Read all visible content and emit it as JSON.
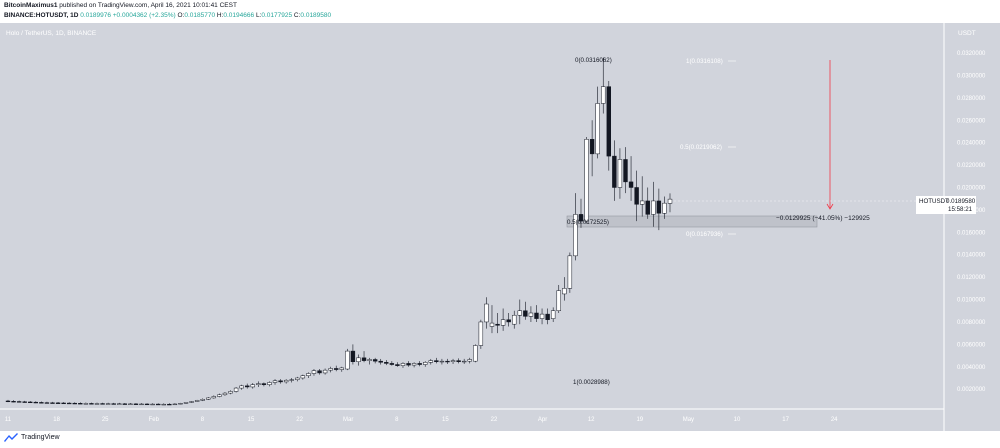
{
  "header": {
    "author": "BitcoinMaximus1",
    "published_text": "published on TradingView.com, April 16, 2021 10:01:41 CEST",
    "symbol": "BINANCE:HOTUSDT, 1D",
    "last": "0.0189976",
    "change": "+0.0004362 (+2.35%)",
    "o_label": "O:",
    "o": "0.0185770",
    "h_label": "H:",
    "h": "0.0194666",
    "l_label": "L:",
    "l": "0.0177925",
    "c_label": "C:",
    "c": "0.0189580"
  },
  "chart_title": "Holo / TetherUS, 1D, BINANCE",
  "currency": "USDT",
  "price_tag": {
    "label": "HOTUSDT",
    "value": "0.0189580",
    "countdown": "15:58:21"
  },
  "fib": {
    "zero_top": "0(0.0316062)",
    "one_top": "1(0.0316108)",
    "half": "0.5(0.0219062)",
    "zero_bottom": "0(0.0167936)",
    "box_left": "0.5(0.0172525)",
    "one_bottom": "1(0.0028988)"
  },
  "measure": {
    "text": "−0.0129925 (−41.05%) −129925"
  },
  "footer": {
    "brand": "TradingView"
  },
  "colors": {
    "background": "#d1d4dc",
    "arrow": "#f23645",
    "box": "#b2b5be",
    "candle": "#131722"
  },
  "chart_data": {
    "type": "candlestick",
    "y_axis_ticks": [
      "0.0320000",
      "0.0300000",
      "0.0280000",
      "0.0260000",
      "0.0240000",
      "0.0220000",
      "0.0200000",
      "0.0180000",
      "0.0160000",
      "0.0140000",
      "0.0120000",
      "0.0100000",
      "0.0080000",
      "0.0060000",
      "0.0040000",
      "0.0020000"
    ],
    "y_range": [
      0.0005,
      0.0345
    ],
    "x_axis_ticks": [
      "11",
      "18",
      "25",
      "Feb",
      "8",
      "15",
      "22",
      "Mar",
      "8",
      "15",
      "22",
      "Apr",
      "12",
      "19",
      "May",
      "10",
      "17",
      "24"
    ],
    "candles": [
      {
        "o": 0.00095,
        "h": 0.00105,
        "l": 0.00085,
        "c": 0.00092
      },
      {
        "o": 0.00092,
        "h": 0.00102,
        "l": 0.00082,
        "c": 0.0009
      },
      {
        "o": 0.0009,
        "h": 0.00098,
        "l": 0.00082,
        "c": 0.00088
      },
      {
        "o": 0.00088,
        "h": 0.00096,
        "l": 0.0008,
        "c": 0.00086
      },
      {
        "o": 0.00086,
        "h": 0.00094,
        "l": 0.00078,
        "c": 0.00084
      },
      {
        "o": 0.00084,
        "h": 0.00092,
        "l": 0.00076,
        "c": 0.00082
      },
      {
        "o": 0.00082,
        "h": 0.0009,
        "l": 0.00075,
        "c": 0.0008
      },
      {
        "o": 0.0008,
        "h": 0.00088,
        "l": 0.00074,
        "c": 0.00079
      },
      {
        "o": 0.00079,
        "h": 0.00087,
        "l": 0.00073,
        "c": 0.00078
      },
      {
        "o": 0.00078,
        "h": 0.00086,
        "l": 0.00072,
        "c": 0.00077
      },
      {
        "o": 0.00077,
        "h": 0.00085,
        "l": 0.00071,
        "c": 0.00076
      },
      {
        "o": 0.00076,
        "h": 0.00084,
        "l": 0.0007,
        "c": 0.00075
      },
      {
        "o": 0.00075,
        "h": 0.00083,
        "l": 0.00069,
        "c": 0.00074
      },
      {
        "o": 0.00074,
        "h": 0.00082,
        "l": 0.00068,
        "c": 0.00073
      },
      {
        "o": 0.00073,
        "h": 0.00081,
        "l": 0.00068,
        "c": 0.00073
      },
      {
        "o": 0.00073,
        "h": 0.0008,
        "l": 0.00067,
        "c": 0.00072
      },
      {
        "o": 0.00072,
        "h": 0.0008,
        "l": 0.00067,
        "c": 0.00072
      },
      {
        "o": 0.00072,
        "h": 0.00079,
        "l": 0.00066,
        "c": 0.00071
      },
      {
        "o": 0.00071,
        "h": 0.00079,
        "l": 0.00066,
        "c": 0.00071
      },
      {
        "o": 0.00071,
        "h": 0.00078,
        "l": 0.00065,
        "c": 0.0007
      },
      {
        "o": 0.0007,
        "h": 0.00078,
        "l": 0.00065,
        "c": 0.0007
      },
      {
        "o": 0.0007,
        "h": 0.00077,
        "l": 0.00064,
        "c": 0.00069
      },
      {
        "o": 0.00069,
        "h": 0.00077,
        "l": 0.00064,
        "c": 0.00069
      },
      {
        "o": 0.00069,
        "h": 0.00076,
        "l": 0.00063,
        "c": 0.00068
      },
      {
        "o": 0.00068,
        "h": 0.00076,
        "l": 0.00063,
        "c": 0.00068
      },
      {
        "o": 0.00068,
        "h": 0.00075,
        "l": 0.00062,
        "c": 0.00067
      },
      {
        "o": 0.00067,
        "h": 0.00075,
        "l": 0.00062,
        "c": 0.00067
      },
      {
        "o": 0.00067,
        "h": 0.00074,
        "l": 0.00061,
        "c": 0.00066
      },
      {
        "o": 0.00066,
        "h": 0.00074,
        "l": 0.00061,
        "c": 0.00066
      },
      {
        "o": 0.00066,
        "h": 0.00074,
        "l": 0.0006,
        "c": 0.00065
      },
      {
        "o": 0.00065,
        "h": 0.00074,
        "l": 0.0006,
        "c": 0.00068
      },
      {
        "o": 0.00068,
        "h": 0.00078,
        "l": 0.00064,
        "c": 0.00074
      },
      {
        "o": 0.00074,
        "h": 0.00085,
        "l": 0.0007,
        "c": 0.00082
      },
      {
        "o": 0.00082,
        "h": 0.00095,
        "l": 0.00078,
        "c": 0.0009
      },
      {
        "o": 0.0009,
        "h": 0.00105,
        "l": 0.00086,
        "c": 0.001
      },
      {
        "o": 0.001,
        "h": 0.00118,
        "l": 0.00094,
        "c": 0.0011
      },
      {
        "o": 0.0011,
        "h": 0.0013,
        "l": 0.00104,
        "c": 0.00122
      },
      {
        "o": 0.00122,
        "h": 0.00145,
        "l": 0.00115,
        "c": 0.00135
      },
      {
        "o": 0.00135,
        "h": 0.0016,
        "l": 0.00128,
        "c": 0.0015
      },
      {
        "o": 0.0015,
        "h": 0.00175,
        "l": 0.0014,
        "c": 0.00165
      },
      {
        "o": 0.00165,
        "h": 0.0019,
        "l": 0.00155,
        "c": 0.0018
      },
      {
        "o": 0.0018,
        "h": 0.0022,
        "l": 0.0017,
        "c": 0.0021
      },
      {
        "o": 0.0021,
        "h": 0.0024,
        "l": 0.00195,
        "c": 0.0023
      },
      {
        "o": 0.0023,
        "h": 0.0025,
        "l": 0.00205,
        "c": 0.0022
      },
      {
        "o": 0.0022,
        "h": 0.00255,
        "l": 0.00205,
        "c": 0.0024
      },
      {
        "o": 0.0024,
        "h": 0.0027,
        "l": 0.0022,
        "c": 0.0025
      },
      {
        "o": 0.0025,
        "h": 0.0026,
        "l": 0.00225,
        "c": 0.0024
      },
      {
        "o": 0.0024,
        "h": 0.0027,
        "l": 0.00225,
        "c": 0.0026
      },
      {
        "o": 0.0026,
        "h": 0.0029,
        "l": 0.0024,
        "c": 0.00275
      },
      {
        "o": 0.00275,
        "h": 0.0029,
        "l": 0.0025,
        "c": 0.00265
      },
      {
        "o": 0.00265,
        "h": 0.0029,
        "l": 0.0025,
        "c": 0.0028
      },
      {
        "o": 0.0028,
        "h": 0.003,
        "l": 0.0026,
        "c": 0.00285
      },
      {
        "o": 0.00285,
        "h": 0.0031,
        "l": 0.0027,
        "c": 0.003
      },
      {
        "o": 0.003,
        "h": 0.0033,
        "l": 0.00285,
        "c": 0.0032
      },
      {
        "o": 0.0032,
        "h": 0.0035,
        "l": 0.003,
        "c": 0.0034
      },
      {
        "o": 0.0034,
        "h": 0.0038,
        "l": 0.0032,
        "c": 0.00365
      },
      {
        "o": 0.00365,
        "h": 0.0038,
        "l": 0.0033,
        "c": 0.00345
      },
      {
        "o": 0.00345,
        "h": 0.00385,
        "l": 0.0033,
        "c": 0.0037
      },
      {
        "o": 0.0037,
        "h": 0.004,
        "l": 0.0035,
        "c": 0.00385
      },
      {
        "o": 0.00385,
        "h": 0.0041,
        "l": 0.0036,
        "c": 0.00375
      },
      {
        "o": 0.00375,
        "h": 0.004,
        "l": 0.00355,
        "c": 0.0039
      },
      {
        "o": 0.0038,
        "h": 0.0056,
        "l": 0.0037,
        "c": 0.0054
      },
      {
        "o": 0.0054,
        "h": 0.006,
        "l": 0.0042,
        "c": 0.00445
      },
      {
        "o": 0.00445,
        "h": 0.0051,
        "l": 0.0041,
        "c": 0.0048
      },
      {
        "o": 0.0048,
        "h": 0.0054,
        "l": 0.0044,
        "c": 0.00455
      },
      {
        "o": 0.00455,
        "h": 0.0048,
        "l": 0.0042,
        "c": 0.00465
      },
      {
        "o": 0.00465,
        "h": 0.0048,
        "l": 0.0043,
        "c": 0.0045
      },
      {
        "o": 0.0045,
        "h": 0.0047,
        "l": 0.0042,
        "c": 0.0044
      },
      {
        "o": 0.0044,
        "h": 0.0046,
        "l": 0.00415,
        "c": 0.0043
      },
      {
        "o": 0.0043,
        "h": 0.0045,
        "l": 0.0041,
        "c": 0.0042
      },
      {
        "o": 0.0042,
        "h": 0.0044,
        "l": 0.004,
        "c": 0.0041
      },
      {
        "o": 0.0041,
        "h": 0.0044,
        "l": 0.0039,
        "c": 0.0043
      },
      {
        "o": 0.0043,
        "h": 0.0045,
        "l": 0.004,
        "c": 0.00415
      },
      {
        "o": 0.00415,
        "h": 0.0044,
        "l": 0.00395,
        "c": 0.0043
      },
      {
        "o": 0.0043,
        "h": 0.0045,
        "l": 0.00405,
        "c": 0.0042
      },
      {
        "o": 0.0042,
        "h": 0.0045,
        "l": 0.004,
        "c": 0.0044
      },
      {
        "o": 0.0044,
        "h": 0.0047,
        "l": 0.0042,
        "c": 0.00455
      },
      {
        "o": 0.00455,
        "h": 0.0048,
        "l": 0.0043,
        "c": 0.00445
      },
      {
        "o": 0.00445,
        "h": 0.0047,
        "l": 0.0042,
        "c": 0.0045
      },
      {
        "o": 0.0045,
        "h": 0.0047,
        "l": 0.00425,
        "c": 0.00445
      },
      {
        "o": 0.00445,
        "h": 0.0047,
        "l": 0.00425,
        "c": 0.00455
      },
      {
        "o": 0.00455,
        "h": 0.00475,
        "l": 0.0043,
        "c": 0.00445
      },
      {
        "o": 0.00445,
        "h": 0.0047,
        "l": 0.00425,
        "c": 0.0045
      },
      {
        "o": 0.0045,
        "h": 0.0048,
        "l": 0.0043,
        "c": 0.00465
      },
      {
        "o": 0.0045,
        "h": 0.006,
        "l": 0.0044,
        "c": 0.0059
      },
      {
        "o": 0.0059,
        "h": 0.0082,
        "l": 0.0056,
        "c": 0.008
      },
      {
        "o": 0.008,
        "h": 0.0102,
        "l": 0.0074,
        "c": 0.0096
      },
      {
        "o": 0.0076,
        "h": 0.0095,
        "l": 0.007,
        "c": 0.0079
      },
      {
        "o": 0.0078,
        "h": 0.0088,
        "l": 0.007,
        "c": 0.0077
      },
      {
        "o": 0.0077,
        "h": 0.0092,
        "l": 0.0072,
        "c": 0.0082
      },
      {
        "o": 0.0082,
        "h": 0.0088,
        "l": 0.0076,
        "c": 0.008
      },
      {
        "o": 0.0078,
        "h": 0.009,
        "l": 0.0074,
        "c": 0.0086
      },
      {
        "o": 0.0086,
        "h": 0.01,
        "l": 0.0078,
        "c": 0.009
      },
      {
        "o": 0.009,
        "h": 0.0098,
        "l": 0.0082,
        "c": 0.0085
      },
      {
        "o": 0.0085,
        "h": 0.0094,
        "l": 0.008,
        "c": 0.0088
      },
      {
        "o": 0.0088,
        "h": 0.0095,
        "l": 0.008,
        "c": 0.0083
      },
      {
        "o": 0.0083,
        "h": 0.0092,
        "l": 0.0078,
        "c": 0.0087
      },
      {
        "o": 0.0087,
        "h": 0.0092,
        "l": 0.0078,
        "c": 0.0082
      },
      {
        "o": 0.0083,
        "h": 0.0093,
        "l": 0.008,
        "c": 0.009
      },
      {
        "o": 0.009,
        "h": 0.0113,
        "l": 0.0088,
        "c": 0.0108
      },
      {
        "o": 0.0105,
        "h": 0.012,
        "l": 0.0099,
        "c": 0.011
      },
      {
        "o": 0.011,
        "h": 0.0142,
        "l": 0.0106,
        "c": 0.0139
      },
      {
        "o": 0.0139,
        "h": 0.0195,
        "l": 0.0135,
        "c": 0.0176
      },
      {
        "o": 0.0176,
        "h": 0.019,
        "l": 0.0164,
        "c": 0.017
      },
      {
        "o": 0.017,
        "h": 0.0245,
        "l": 0.0168,
        "c": 0.0243
      },
      {
        "o": 0.0243,
        "h": 0.026,
        "l": 0.021,
        "c": 0.023
      },
      {
        "o": 0.023,
        "h": 0.029,
        "l": 0.0226,
        "c": 0.0275
      },
      {
        "o": 0.0275,
        "h": 0.0316,
        "l": 0.0266,
        "c": 0.029
      },
      {
        "o": 0.029,
        "h": 0.0295,
        "l": 0.0215,
        "c": 0.0228
      },
      {
        "o": 0.0228,
        "h": 0.0242,
        "l": 0.0188,
        "c": 0.02
      },
      {
        "o": 0.02,
        "h": 0.0235,
        "l": 0.019,
        "c": 0.0225
      },
      {
        "o": 0.0225,
        "h": 0.0236,
        "l": 0.0195,
        "c": 0.0205
      },
      {
        "o": 0.0205,
        "h": 0.0228,
        "l": 0.0188,
        "c": 0.02
      },
      {
        "o": 0.02,
        "h": 0.0215,
        "l": 0.017,
        "c": 0.0185
      },
      {
        "o": 0.0185,
        "h": 0.021,
        "l": 0.0174,
        "c": 0.0188
      },
      {
        "o": 0.0188,
        "h": 0.02,
        "l": 0.0172,
        "c": 0.0176
      },
      {
        "o": 0.0176,
        "h": 0.0205,
        "l": 0.0165,
        "c": 0.0188
      },
      {
        "o": 0.0188,
        "h": 0.0199,
        "l": 0.0162,
        "c": 0.0177
      },
      {
        "o": 0.0177,
        "h": 0.0192,
        "l": 0.0172,
        "c": 0.0186
      },
      {
        "o": 0.01858,
        "h": 0.01947,
        "l": 0.01779,
        "c": 0.01896
      }
    ]
  }
}
